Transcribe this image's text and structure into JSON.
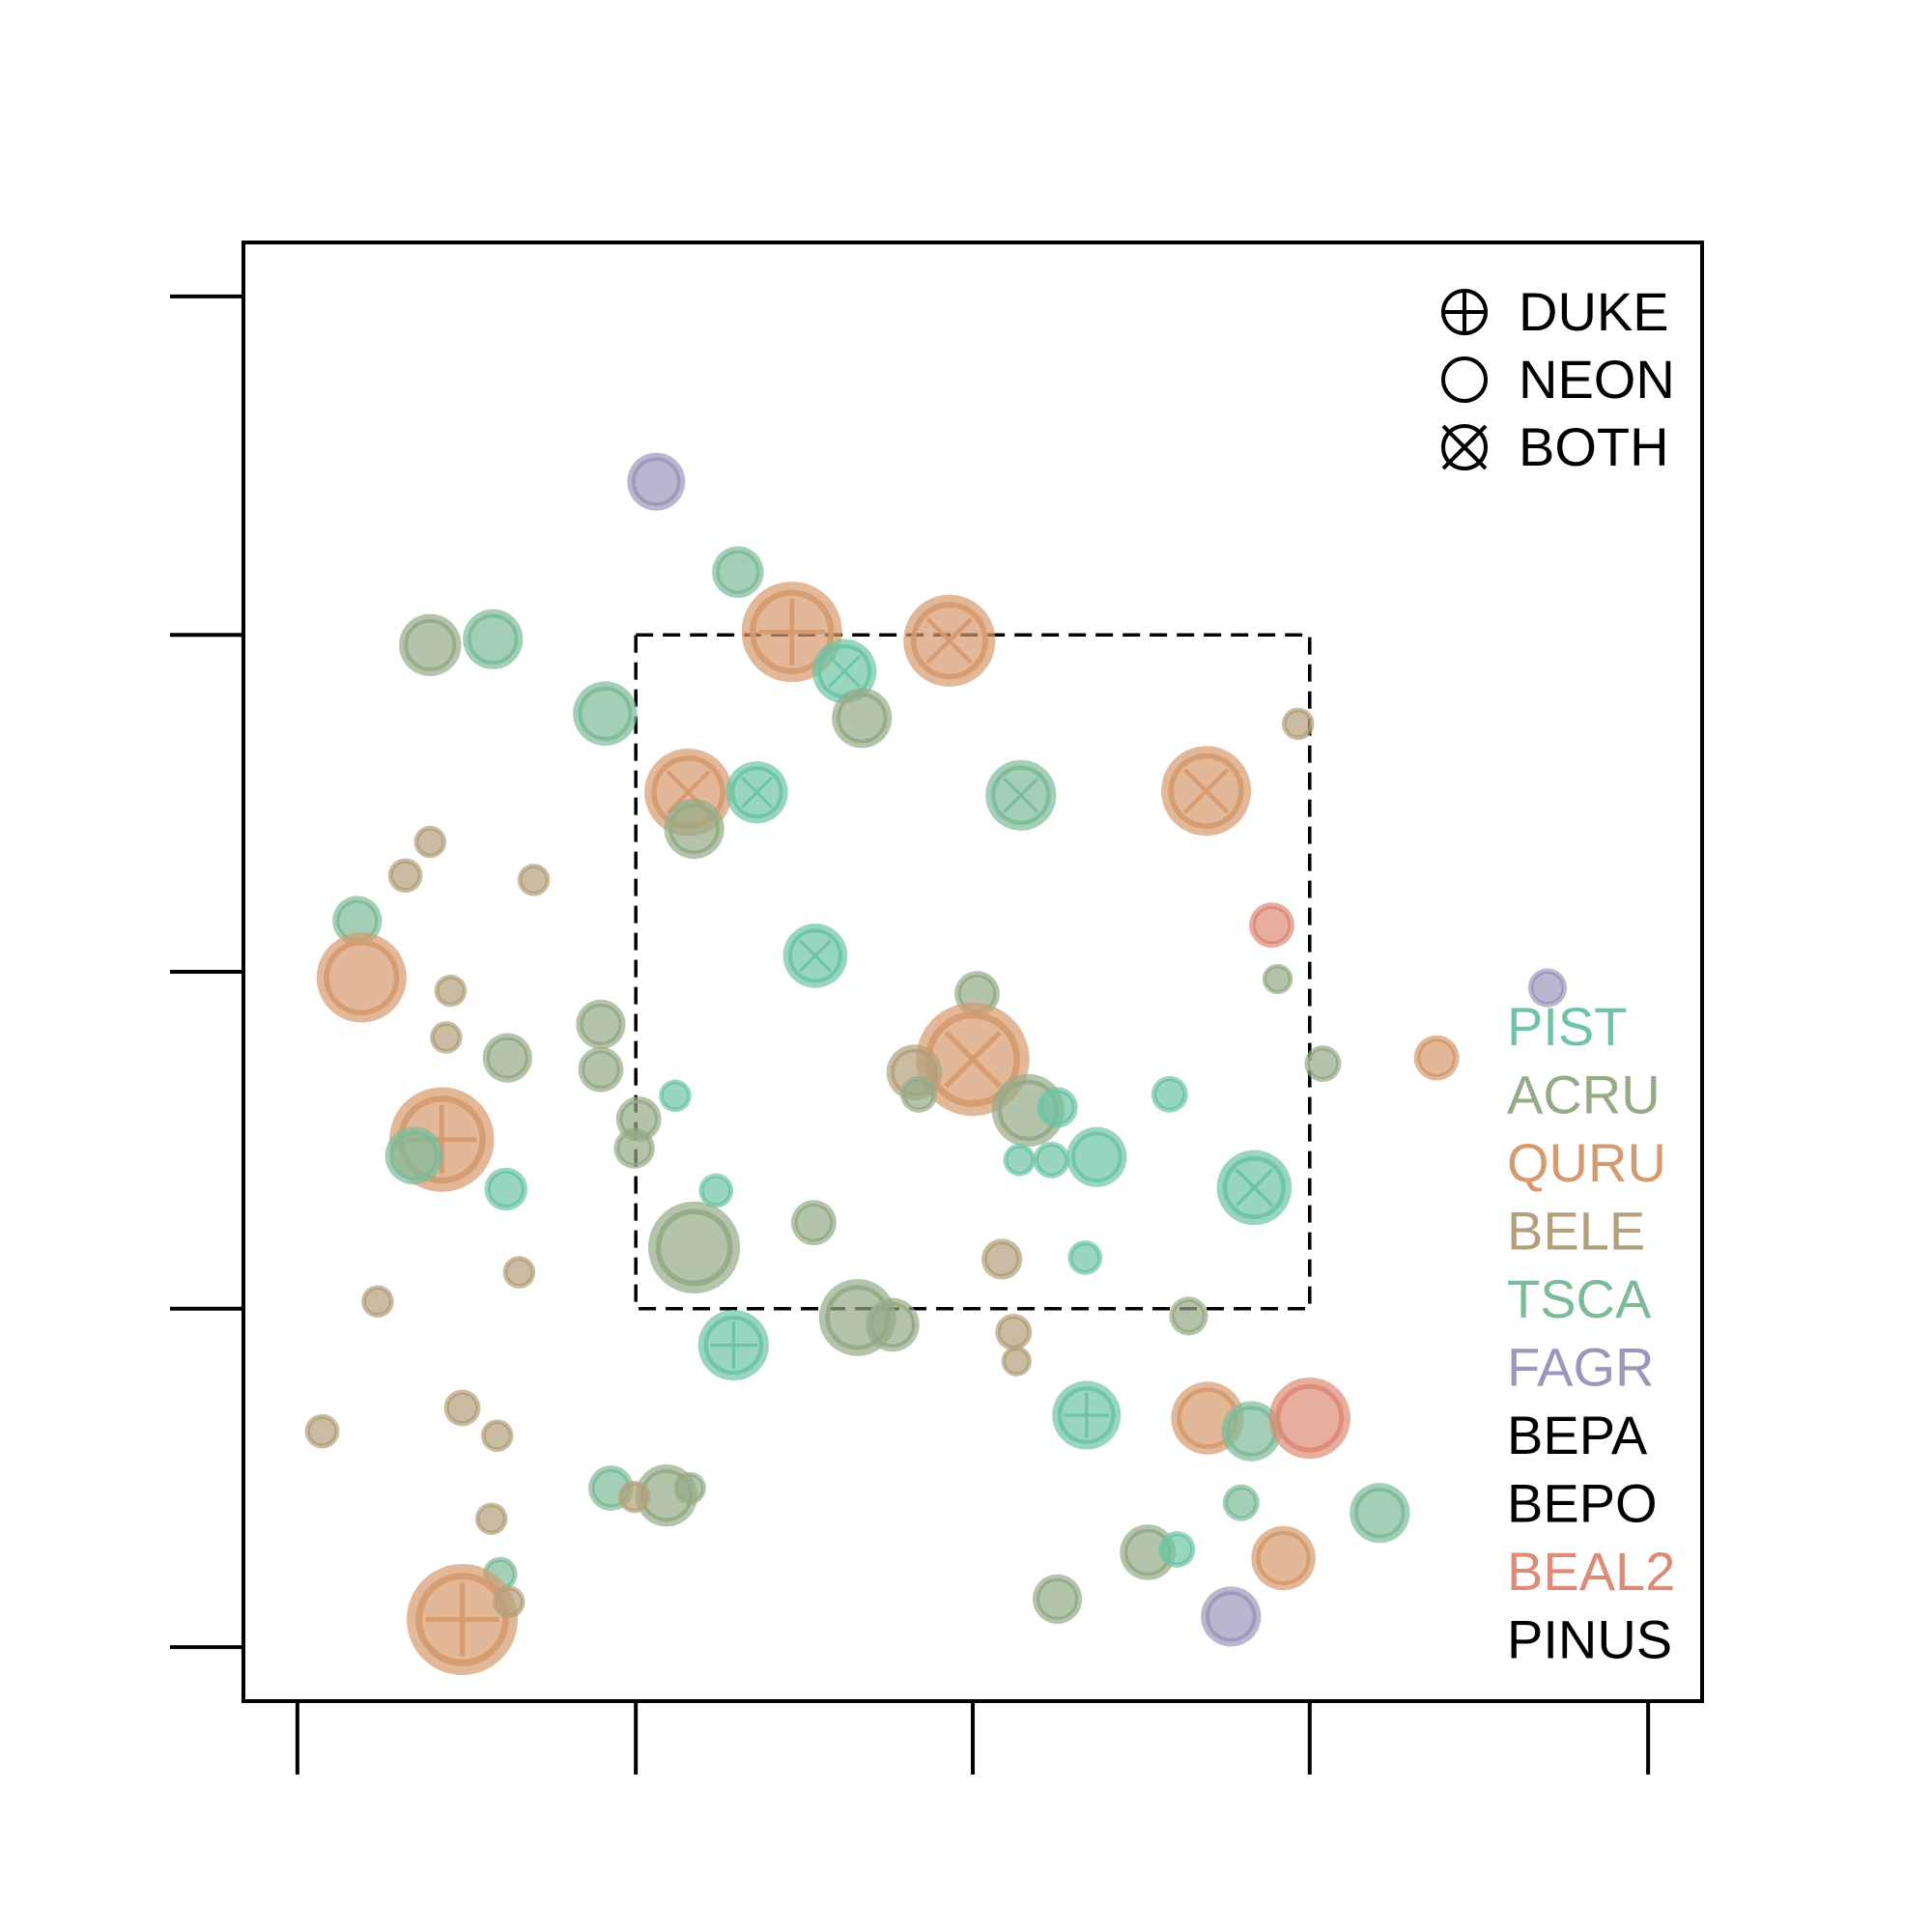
{
  "chart_data": {
    "type": "scatter",
    "title": "",
    "xlabel": "",
    "ylabel": "",
    "xlim": [
      0,
      1
    ],
    "ylim": [
      0,
      1
    ],
    "x_ticks": [
      0.037,
      0.269,
      0.5,
      0.731,
      0.963
    ],
    "y_ticks": [
      0.037,
      0.269,
      0.5,
      0.731,
      0.963
    ],
    "tick_labels": false,
    "grid": false,
    "study_region": {
      "x": [
        0.269,
        0.731
      ],
      "y": [
        0.269,
        0.731
      ]
    },
    "shape_legend": {
      "placement": "top-right",
      "entries": [
        {
          "symbol": "plus-circle",
          "label": "DUKE"
        },
        {
          "symbol": "circle",
          "label": "NEON"
        },
        {
          "symbol": "cross-circle",
          "label": "BOTH"
        }
      ]
    },
    "species_legend": {
      "placement": "right",
      "entries": [
        {
          "label": "PIST",
          "color": "#6cc4a4"
        },
        {
          "label": "ACRU",
          "color": "#94ab86"
        },
        {
          "label": "QURU",
          "color": "#d69a6e"
        },
        {
          "label": "BELE",
          "color": "#b39f7a"
        },
        {
          "label": "TSCA",
          "color": "#7cbb98"
        },
        {
          "label": "FAGR",
          "color": "#9c97ba"
        },
        {
          "label": "BEPA",
          "color": "#000000"
        },
        {
          "label": "BEPO",
          "color": "#000000"
        },
        {
          "label": "BEAL2",
          "color": "#dd8a76"
        },
        {
          "label": "PINUS",
          "color": "#000000"
        }
      ]
    },
    "points": [
      {
        "x": 0.283,
        "y": 0.836,
        "size": 2,
        "species": "FAGR",
        "source": "NEON"
      },
      {
        "x": 0.339,
        "y": 0.774,
        "size": 1.7,
        "species": "TSCA",
        "source": "NEON"
      },
      {
        "x": 0.376,
        "y": 0.733,
        "size": 4,
        "species": "QURU",
        "source": "DUKE"
      },
      {
        "x": 0.484,
        "y": 0.727,
        "size": 3.6,
        "species": "QURU",
        "source": "BOTH"
      },
      {
        "x": 0.412,
        "y": 0.706,
        "size": 2.3,
        "species": "PIST",
        "source": "BOTH"
      },
      {
        "x": 0.128,
        "y": 0.724,
        "size": 2.2,
        "species": "ACRU",
        "source": "NEON"
      },
      {
        "x": 0.171,
        "y": 0.728,
        "size": 2.1,
        "species": "TSCA",
        "source": "NEON"
      },
      {
        "x": 0.248,
        "y": 0.677,
        "size": 2.3,
        "species": "TSCA",
        "source": "NEON"
      },
      {
        "x": 0.424,
        "y": 0.674,
        "size": 2.1,
        "species": "ACRU",
        "source": "NEON"
      },
      {
        "x": 0.723,
        "y": 0.67,
        "size": 0.8,
        "species": "BELE",
        "source": "NEON"
      },
      {
        "x": 0.305,
        "y": 0.623,
        "size": 3.4,
        "species": "QURU",
        "source": "BOTH"
      },
      {
        "x": 0.352,
        "y": 0.623,
        "size": 2.2,
        "species": "PIST",
        "source": "BOTH"
      },
      {
        "x": 0.533,
        "y": 0.621,
        "size": 2.6,
        "species": "TSCA",
        "source": "BOTH"
      },
      {
        "x": 0.66,
        "y": 0.624,
        "size": 3.5,
        "species": "QURU",
        "source": "BOTH"
      },
      {
        "x": 0.309,
        "y": 0.598,
        "size": 2.1,
        "species": "ACRU",
        "source": "NEON"
      },
      {
        "x": 0.128,
        "y": 0.589,
        "size": 0.8,
        "species": "BELE",
        "source": "NEON"
      },
      {
        "x": 0.111,
        "y": 0.566,
        "size": 0.9,
        "species": "BELE",
        "source": "NEON"
      },
      {
        "x": 0.199,
        "y": 0.563,
        "size": 0.8,
        "species": "BELE",
        "source": "NEON"
      },
      {
        "x": 0.078,
        "y": 0.535,
        "size": 1.6,
        "species": "TSCA",
        "source": "NEON"
      },
      {
        "x": 0.705,
        "y": 0.532,
        "size": 1.4,
        "species": "BEAL2",
        "source": "NEON"
      },
      {
        "x": 0.392,
        "y": 0.511,
        "size": 2.3,
        "species": "PIST",
        "source": "BOTH"
      },
      {
        "x": 0.081,
        "y": 0.496,
        "size": 3.5,
        "species": "QURU",
        "source": "NEON"
      },
      {
        "x": 0.709,
        "y": 0.495,
        "size": 0.7,
        "species": "ACRU",
        "source": "NEON"
      },
      {
        "x": 0.894,
        "y": 0.489,
        "size": 1.1,
        "species": "FAGR",
        "source": "NEON"
      },
      {
        "x": 0.142,
        "y": 0.487,
        "size": 0.8,
        "species": "BELE",
        "source": "NEON"
      },
      {
        "x": 0.503,
        "y": 0.485,
        "size": 1.4,
        "species": "ACRU",
        "source": "NEON"
      },
      {
        "x": 0.245,
        "y": 0.464,
        "size": 1.6,
        "species": "ACRU",
        "source": "NEON"
      },
      {
        "x": 0.139,
        "y": 0.455,
        "size": 0.8,
        "species": "BELE",
        "source": "NEON"
      },
      {
        "x": 0.5,
        "y": 0.44,
        "size": 4.6,
        "species": "QURU",
        "source": "BOTH"
      },
      {
        "x": 0.181,
        "y": 0.441,
        "size": 1.6,
        "species": "ACRU",
        "source": "NEON"
      },
      {
        "x": 0.818,
        "y": 0.441,
        "size": 1.4,
        "species": "QURU",
        "source": "NEON"
      },
      {
        "x": 0.46,
        "y": 0.431,
        "size": 1.9,
        "species": "BELE",
        "source": "NEON"
      },
      {
        "x": 0.74,
        "y": 0.437,
        "size": 1,
        "species": "ACRU",
        "source": "NEON"
      },
      {
        "x": 0.245,
        "y": 0.433,
        "size": 1.4,
        "species": "ACRU",
        "source": "NEON"
      },
      {
        "x": 0.296,
        "y": 0.415,
        "size": 0.8,
        "species": "PIST",
        "source": "NEON"
      },
      {
        "x": 0.463,
        "y": 0.416,
        "size": 1,
        "species": "ACRU",
        "source": "NEON"
      },
      {
        "x": 0.635,
        "y": 0.416,
        "size": 1,
        "species": "PIST",
        "source": "NEON"
      },
      {
        "x": 0.538,
        "y": 0.405,
        "size": 2.7,
        "species": "ACRU",
        "source": "NEON"
      },
      {
        "x": 0.558,
        "y": 0.407,
        "size": 1.2,
        "species": "PIST",
        "source": "NEON"
      },
      {
        "x": 0.271,
        "y": 0.399,
        "size": 1.4,
        "species": "ACRU",
        "source": "NEON"
      },
      {
        "x": 0.136,
        "y": 0.385,
        "size": 4.2,
        "species": "QURU",
        "source": "DUKE"
      },
      {
        "x": 0.117,
        "y": 0.374,
        "size": 2,
        "species": "TSCA",
        "source": "NEON"
      },
      {
        "x": 0.268,
        "y": 0.379,
        "size": 1.2,
        "species": "ACRU",
        "source": "NEON"
      },
      {
        "x": 0.585,
        "y": 0.373,
        "size": 2.1,
        "species": "PIST",
        "source": "NEON"
      },
      {
        "x": 0.532,
        "y": 0.371,
        "size": 0.8,
        "species": "PIST",
        "source": "NEON"
      },
      {
        "x": 0.554,
        "y": 0.371,
        "size": 1,
        "species": "PIST",
        "source": "NEON"
      },
      {
        "x": 0.693,
        "y": 0.352,
        "size": 2.8,
        "species": "PIST",
        "source": "BOTH"
      },
      {
        "x": 0.18,
        "y": 0.351,
        "size": 1.3,
        "species": "PIST",
        "source": "NEON"
      },
      {
        "x": 0.324,
        "y": 0.35,
        "size": 0.9,
        "species": "PIST",
        "source": "NEON"
      },
      {
        "x": 0.391,
        "y": 0.328,
        "size": 1.4,
        "species": "ACRU",
        "source": "NEON"
      },
      {
        "x": 0.309,
        "y": 0.311,
        "size": 3.6,
        "species": "ACRU",
        "source": "NEON"
      },
      {
        "x": 0.52,
        "y": 0.303,
        "size": 1.2,
        "species": "BELE",
        "source": "NEON"
      },
      {
        "x": 0.577,
        "y": 0.304,
        "size": 0.9,
        "species": "PIST",
        "source": "NEON"
      },
      {
        "x": 0.189,
        "y": 0.294,
        "size": 0.8,
        "species": "BELE",
        "source": "NEON"
      },
      {
        "x": 0.092,
        "y": 0.274,
        "size": 0.8,
        "species": "BELE",
        "source": "NEON"
      },
      {
        "x": 0.421,
        "y": 0.263,
        "size": 2.9,
        "species": "ACRU",
        "source": "NEON"
      },
      {
        "x": 0.445,
        "y": 0.258,
        "size": 1.8,
        "species": "ACRU",
        "source": "NEON"
      },
      {
        "x": 0.648,
        "y": 0.264,
        "size": 1.1,
        "species": "ACRU",
        "source": "NEON"
      },
      {
        "x": 0.528,
        "y": 0.253,
        "size": 1,
        "species": "BELE",
        "source": "NEON"
      },
      {
        "x": 0.336,
        "y": 0.244,
        "size": 2.6,
        "species": "PIST",
        "source": "DUKE"
      },
      {
        "x": 0.53,
        "y": 0.233,
        "size": 0.7,
        "species": "BELE",
        "source": "NEON"
      },
      {
        "x": 0.578,
        "y": 0.196,
        "size": 2.5,
        "species": "PIST",
        "source": "DUKE"
      },
      {
        "x": 0.661,
        "y": 0.194,
        "size": 2.7,
        "species": "QURU",
        "source": "NEON"
      },
      {
        "x": 0.691,
        "y": 0.185,
        "size": 2.1,
        "species": "TSCA",
        "source": "NEON"
      },
      {
        "x": 0.731,
        "y": 0.194,
        "size": 3.1,
        "species": "BEAL2",
        "source": "NEON"
      },
      {
        "x": 0.054,
        "y": 0.185,
        "size": 0.9,
        "species": "BELE",
        "source": "NEON"
      },
      {
        "x": 0.15,
        "y": 0.201,
        "size": 1,
        "species": "BELE",
        "source": "NEON"
      },
      {
        "x": 0.174,
        "y": 0.182,
        "size": 0.8,
        "species": "BELE",
        "source": "NEON"
      },
      {
        "x": 0.252,
        "y": 0.146,
        "size": 1.4,
        "species": "TSCA",
        "source": "NEON"
      },
      {
        "x": 0.29,
        "y": 0.141,
        "size": 2.2,
        "species": "ACRU",
        "source": "NEON"
      },
      {
        "x": 0.268,
        "y": 0.14,
        "size": 0.8,
        "species": "BELE",
        "source": "NEON"
      },
      {
        "x": 0.306,
        "y": 0.146,
        "size": 0.8,
        "species": "ACRU",
        "source": "NEON"
      },
      {
        "x": 0.684,
        "y": 0.136,
        "size": 1,
        "species": "TSCA",
        "source": "NEON"
      },
      {
        "x": 0.779,
        "y": 0.129,
        "size": 2.1,
        "species": "TSCA",
        "source": "NEON"
      },
      {
        "x": 0.17,
        "y": 0.125,
        "size": 0.8,
        "species": "BELE",
        "source": "NEON"
      },
      {
        "x": 0.62,
        "y": 0.102,
        "size": 1.9,
        "species": "ACRU",
        "source": "NEON"
      },
      {
        "x": 0.64,
        "y": 0.104,
        "size": 1,
        "species": "PIST",
        "source": "NEON"
      },
      {
        "x": 0.713,
        "y": 0.098,
        "size": 2.3,
        "species": "QURU",
        "source": "NEON"
      },
      {
        "x": 0.176,
        "y": 0.087,
        "size": 0.9,
        "species": "TSCA",
        "source": "NEON"
      },
      {
        "x": 0.558,
        "y": 0.07,
        "size": 1.6,
        "species": "ACRU",
        "source": "NEON"
      },
      {
        "x": 0.15,
        "y": 0.056,
        "size": 4.5,
        "species": "QURU",
        "source": "DUKE"
      },
      {
        "x": 0.677,
        "y": 0.058,
        "size": 2.1,
        "species": "FAGR",
        "source": "NEON"
      },
      {
        "x": 0.182,
        "y": 0.068,
        "size": 0.8,
        "species": "BELE",
        "source": "NEON"
      }
    ]
  }
}
